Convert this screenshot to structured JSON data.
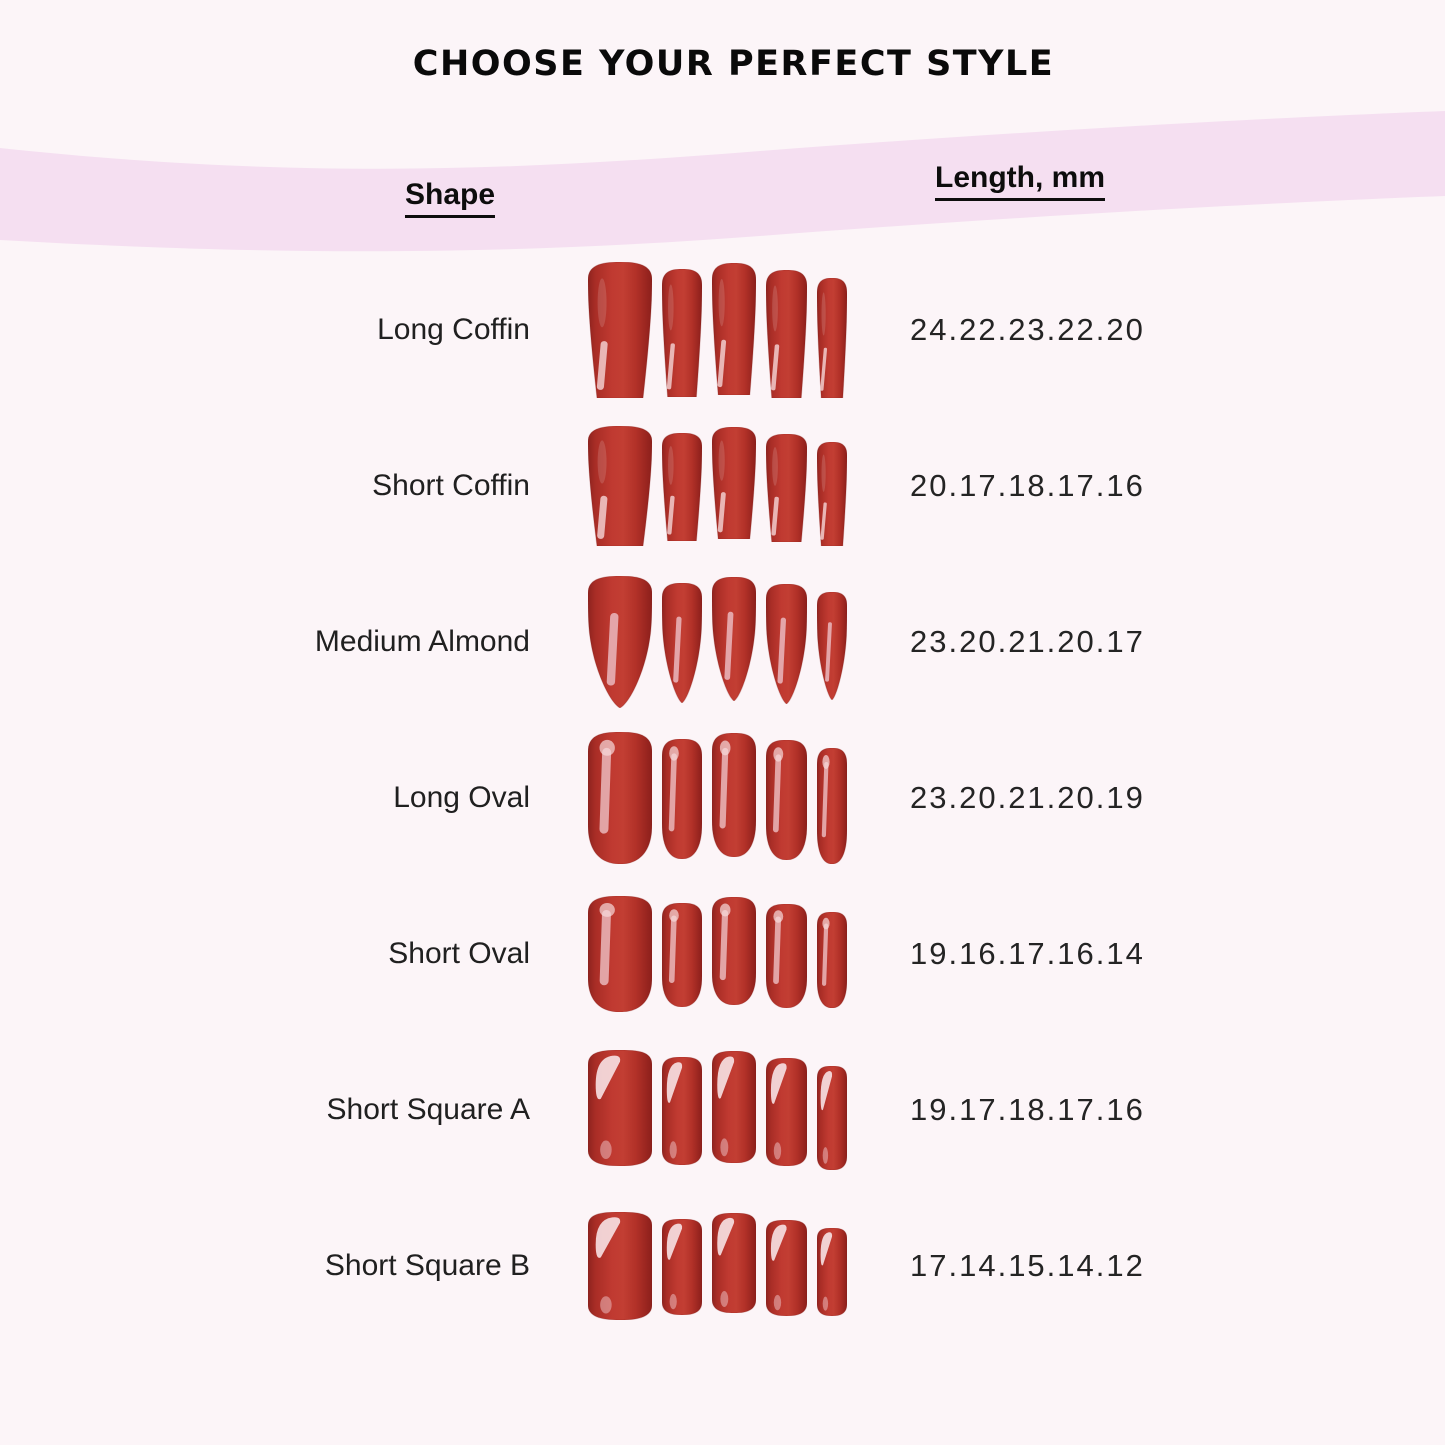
{
  "page": {
    "title": "CHOOSE YOUR PERFECT STYLE",
    "background_color": "#fcf5f8",
    "banner_color": "#f5dff1",
    "nail_color": "#bb3730"
  },
  "table": {
    "shape_header": "Shape",
    "length_header": "Length, mm",
    "rows": [
      {
        "label": "Long Coffin",
        "shape": "coffin",
        "lengths_mm": [
          24,
          22,
          23,
          22,
          20
        ],
        "lengths_text": "24.22.23.22.20"
      },
      {
        "label": "Short Coffin",
        "shape": "coffin",
        "lengths_mm": [
          20,
          17,
          18,
          17,
          16
        ],
        "lengths_text": "20.17.18.17.16"
      },
      {
        "label": "Medium Almond",
        "shape": "almond",
        "lengths_mm": [
          23,
          20,
          21,
          20,
          17
        ],
        "lengths_text": "23.20.21.20.17"
      },
      {
        "label": "Long Oval",
        "shape": "oval",
        "lengths_mm": [
          23,
          20,
          21,
          20,
          19
        ],
        "lengths_text": "23.20.21.20.19"
      },
      {
        "label": "Short Oval",
        "shape": "oval",
        "lengths_mm": [
          19,
          16,
          17,
          16,
          14
        ],
        "lengths_text": "19.16.17.16.14"
      },
      {
        "label": "Short Square A",
        "shape": "square",
        "lengths_mm": [
          19,
          17,
          18,
          17,
          16
        ],
        "lengths_text": "19.17.18.17.16"
      },
      {
        "label": "Short Square B",
        "shape": "square",
        "lengths_mm": [
          17,
          14,
          15,
          14,
          12
        ],
        "lengths_text": "17.14.15.14.12"
      }
    ]
  },
  "chart_data": {
    "type": "table",
    "title": "CHOOSE YOUR PERFECT STYLE",
    "columns": [
      "Shape",
      "Length, mm"
    ],
    "rows": [
      [
        "Long Coffin",
        "24.22.23.22.20"
      ],
      [
        "Short Coffin",
        "20.17.18.17.16"
      ],
      [
        "Medium Almond",
        "23.20.21.20.17"
      ],
      [
        "Long Oval",
        "23.20.21.20.19"
      ],
      [
        "Short Oval",
        "19.16.17.16.14"
      ],
      [
        "Short Square A",
        "19.17.18.17.16"
      ],
      [
        "Short Square B",
        "17.14.15.14.12"
      ]
    ]
  }
}
